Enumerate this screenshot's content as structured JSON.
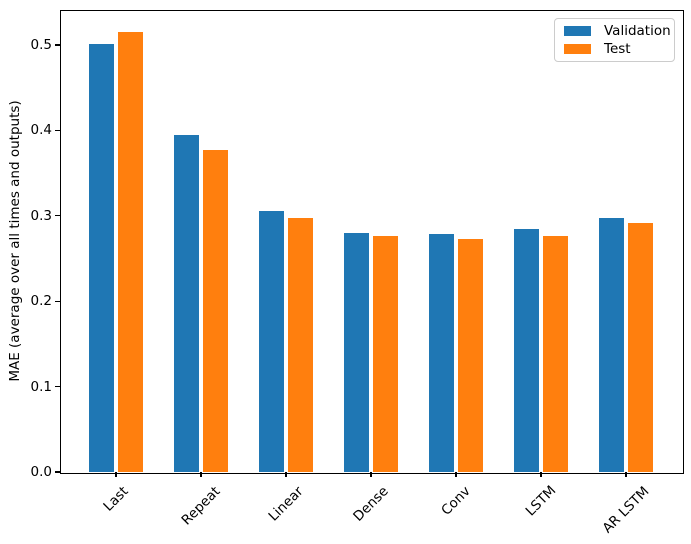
{
  "chart_data": {
    "type": "bar",
    "title": "",
    "xlabel": "",
    "ylabel": "MAE (average over all times and outputs)",
    "categories": [
      "Last",
      "Repeat",
      "Linear",
      "Dense",
      "Conv",
      "LSTM",
      "AR LSTM"
    ],
    "series": [
      {
        "name": "Validation",
        "color": "#1f77b4",
        "values": [
          0.501,
          0.395,
          0.306,
          0.28,
          0.279,
          0.285,
          0.297
        ]
      },
      {
        "name": "Test",
        "color": "#ff7f0e",
        "values": [
          0.515,
          0.377,
          0.298,
          0.276,
          0.273,
          0.276,
          0.291
        ]
      }
    ],
    "yticks": [
      "0.0",
      "0.1",
      "0.2",
      "0.3",
      "0.4",
      "0.5"
    ],
    "ylim": [
      0,
      0.541
    ],
    "xlim": [
      -0.66,
      6.66
    ],
    "bar_width": 0.3,
    "bar_offsets": [
      -0.17,
      0.17
    ],
    "x_tick_rotation_deg": -45,
    "grid": false,
    "legend": {
      "position": "upper right",
      "entries": [
        "Validation",
        "Test"
      ]
    },
    "axis_color": "#000000",
    "background_color": "#ffffff"
  }
}
